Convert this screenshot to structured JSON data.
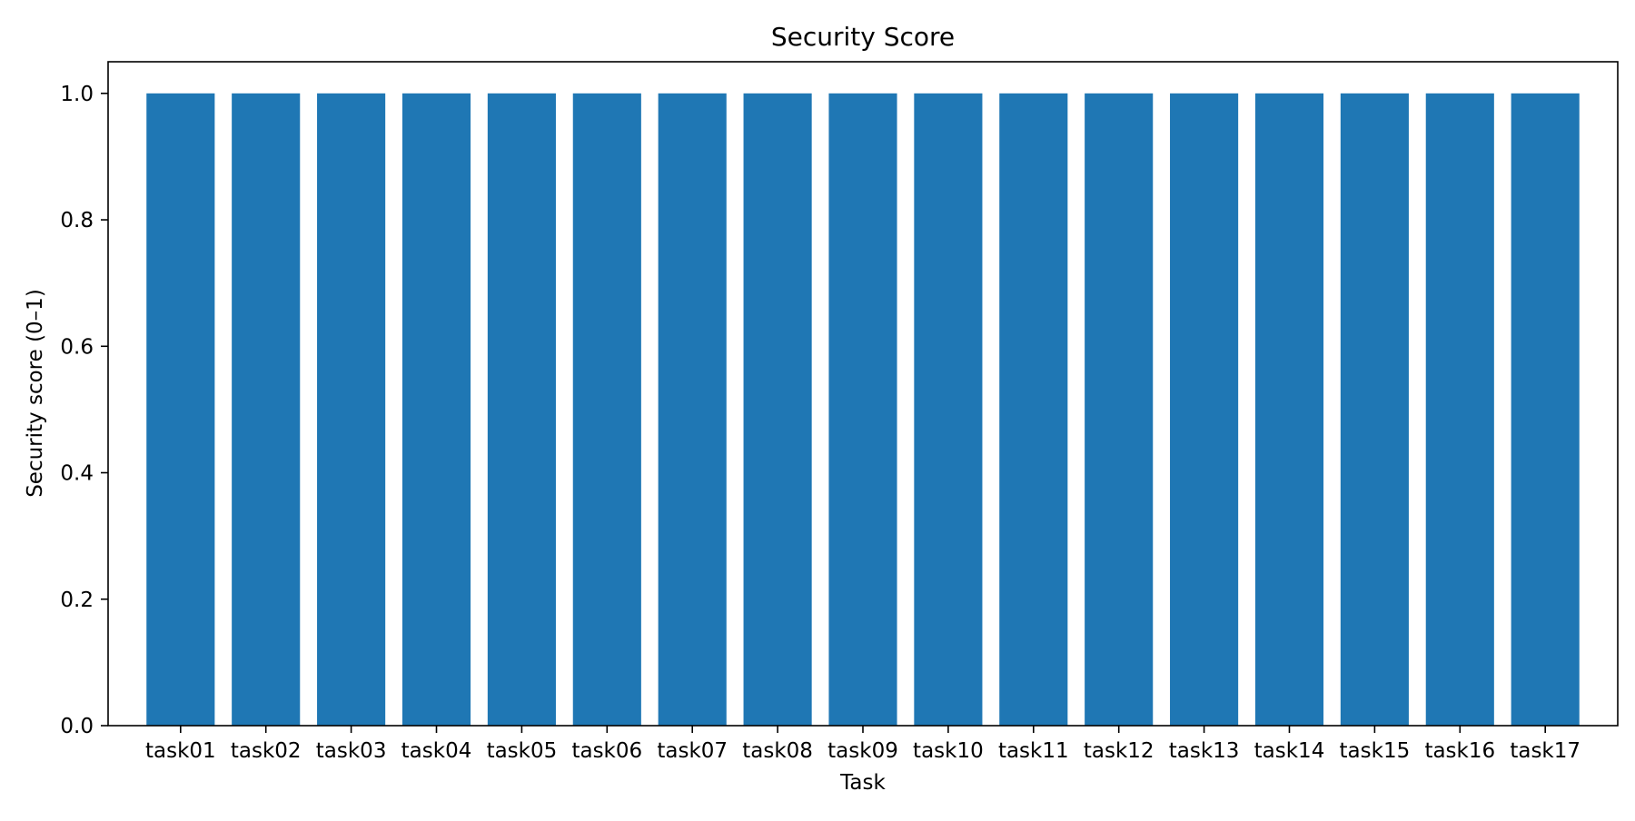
{
  "chart_data": {
    "type": "bar",
    "title": "Security Score",
    "xlabel": "Task",
    "ylabel": "Security score (0–1)",
    "categories": [
      "task01",
      "task02",
      "task03",
      "task04",
      "task05",
      "task06",
      "task07",
      "task08",
      "task09",
      "task10",
      "task11",
      "task12",
      "task13",
      "task14",
      "task15",
      "task16",
      "task17"
    ],
    "values": [
      1.0,
      1.0,
      1.0,
      1.0,
      1.0,
      1.0,
      1.0,
      1.0,
      1.0,
      1.0,
      1.0,
      1.0,
      1.0,
      1.0,
      1.0,
      1.0,
      1.0
    ],
    "ylim": [
      0,
      1.05
    ],
    "yticks": [
      "0.0",
      "0.2",
      "0.4",
      "0.6",
      "0.8",
      "1.0"
    ],
    "grid": false,
    "bar_color": "#1f77b4"
  }
}
